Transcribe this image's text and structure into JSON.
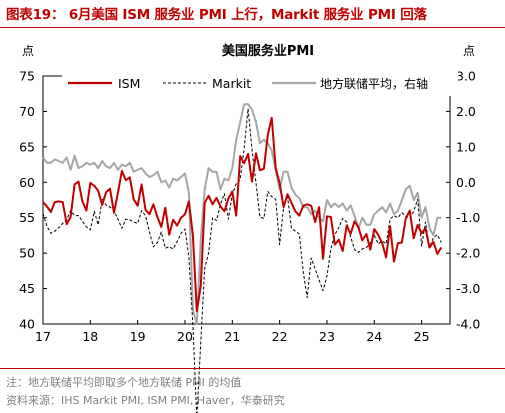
{
  "figure": {
    "title": "图表19：  6月美国 ISM 服务业 PMI 上行，Markit 服务业 PMI 回落",
    "note": "注：地方联储平均即取多个地方联储 PMI 的均值",
    "source": "资料来源：IHS Markit PMI, ISM PMI, Haver，华泰研究"
  },
  "colors": {
    "accent": "#c00000",
    "ism": "#c00000",
    "markit": "#000000",
    "fed": "#a6a6a6"
  },
  "chart_data": {
    "type": "line",
    "title": "美国服务业PMI",
    "left_unit": "点",
    "right_unit": "点",
    "x_tick_labels": [
      "17",
      "18",
      "19",
      "20",
      "21",
      "22",
      "23",
      "24",
      "25"
    ],
    "x_tick_years": [
      2017,
      2018,
      2019,
      2020,
      2021,
      2022,
      2023,
      2024,
      2025
    ],
    "xlim": [
      2017.0,
      2025.6
    ],
    "ylim_left": [
      40,
      75
    ],
    "ylim_right": [
      -4.0,
      3.0
    ],
    "y_ticks_left": [
      "40",
      "45",
      "50",
      "55",
      "60",
      "65",
      "70",
      "75"
    ],
    "y_ticks_right": [
      "-4.0",
      "-3.0",
      "-2.0",
      "-1.0",
      "0.0",
      "1.0",
      "2.0",
      "3.0"
    ],
    "legend_position": "top",
    "series": [
      {
        "name": "ISM",
        "axis": "left",
        "style": "solid",
        "start": "2017-01",
        "values": [
          57.2,
          56.6,
          55.8,
          57.2,
          57.3,
          57.2,
          54.1,
          55.1,
          59.7,
          60.1,
          57.3,
          56.0,
          59.9,
          59.5,
          58.8,
          56.8,
          58.6,
          59.1,
          55.7,
          58.5,
          61.6,
          60.3,
          60.7,
          57.6,
          56.7,
          59.7,
          56.1,
          55.5,
          56.9,
          55.1,
          53.7,
          56.4,
          52.6,
          54.7,
          53.9,
          55.0,
          55.5,
          57.3,
          52.5,
          41.8,
          45.4,
          57.1,
          58.1,
          56.9,
          57.8,
          56.6,
          55.9,
          57.7,
          58.7,
          55.3,
          63.7,
          62.7,
          64.0,
          60.1,
          64.1,
          61.7,
          61.9,
          66.7,
          69.1,
          62.0,
          59.9,
          56.5,
          58.3,
          57.1,
          55.9,
          55.3,
          56.7,
          56.9,
          56.7,
          54.4,
          56.5,
          49.2,
          55.2,
          55.1,
          51.2,
          51.9,
          50.3,
          53.9,
          52.7,
          54.5,
          53.6,
          51.8,
          52.7,
          50.5,
          53.4,
          52.6,
          51.4,
          49.4,
          53.8,
          48.8,
          51.4,
          51.5,
          54.9,
          56.0,
          52.1,
          54.0,
          52.8,
          53.5,
          50.8,
          51.6,
          49.9,
          50.8
        ]
      },
      {
        "name": "Markit",
        "axis": "left",
        "style": "dashed",
        "start": "2017-01",
        "values": [
          55.6,
          53.8,
          52.8,
          53.1,
          53.6,
          54.2,
          54.7,
          56.0,
          55.3,
          55.3,
          54.5,
          53.7,
          53.3,
          55.9,
          54.0,
          57.6,
          56.8,
          56.5,
          56.0,
          54.8,
          53.5,
          54.8,
          54.7,
          54.4,
          54.2,
          56.0,
          55.3,
          53.0,
          50.9,
          51.5,
          53.0,
          50.7,
          50.9,
          50.6,
          51.6,
          52.8,
          53.4,
          49.4,
          39.8,
          26.7,
          37.5,
          47.9,
          50.0,
          55.0,
          54.6,
          56.9,
          58.4,
          54.8,
          58.3,
          59.8,
          60.4,
          64.7,
          70.4,
          64.6,
          59.9,
          55.1,
          54.9,
          58.7,
          58.0,
          57.6,
          51.2,
          56.5,
          58.0,
          53.5,
          53.1,
          52.7,
          47.3,
          43.7,
          49.3,
          47.8,
          46.2,
          44.7,
          46.8,
          50.6,
          52.6,
          53.6,
          54.9,
          54.4,
          52.3,
          50.5,
          50.1,
          50.6,
          50.8,
          51.4,
          52.5,
          51.3,
          51.7,
          51.3,
          54.8,
          55.3,
          55.0,
          55.7,
          55.2,
          54.9,
          55.9,
          57.6,
          51.0,
          54.4,
          50.8,
          52.2,
          52.6,
          51.5
        ]
      },
      {
        "name": "地方联储平均，右轴",
        "axis": "right",
        "style": "solid",
        "start": "2017-01",
        "values": [
          0.7,
          0.55,
          0.55,
          0.65,
          0.6,
          0.55,
          0.7,
          0.35,
          0.75,
          0.4,
          0.45,
          0.55,
          0.5,
          0.55,
          0.4,
          0.6,
          0.45,
          0.4,
          0.55,
          0.35,
          0.5,
          0.45,
          0.55,
          0.3,
          0.35,
          0.4,
          0.25,
          0.15,
          0.2,
          0.3,
          0.0,
          0.05,
          -0.15,
          0.1,
          0.05,
          0.15,
          0.25,
          -0.3,
          -3.6,
          -4.0,
          -1.6,
          -0.2,
          0.4,
          0.3,
          0.3,
          -0.2,
          0.1,
          0.05,
          0.4,
          1.2,
          1.7,
          2.2,
          2.2,
          2.05,
          1.7,
          1.1,
          1.2,
          1.1,
          0.9,
          0.35,
          -0.2,
          0.3,
          0.3,
          -0.15,
          -0.35,
          -0.45,
          -0.7,
          -0.7,
          -0.9,
          -0.8,
          -1.0,
          -1.1,
          -0.5,
          -0.7,
          -0.6,
          -0.7,
          -0.6,
          -0.8,
          -0.65,
          -0.95,
          -1.3,
          -1.0,
          -1.2,
          -1.2,
          -0.9,
          -0.8,
          -0.7,
          -0.85,
          -0.6,
          -0.9,
          -0.8,
          -0.5,
          -0.2,
          -0.1,
          -0.5,
          -0.3,
          -1.0,
          -0.7,
          -1.3,
          -1.5,
          -1.0,
          -1.0
        ]
      }
    ]
  }
}
